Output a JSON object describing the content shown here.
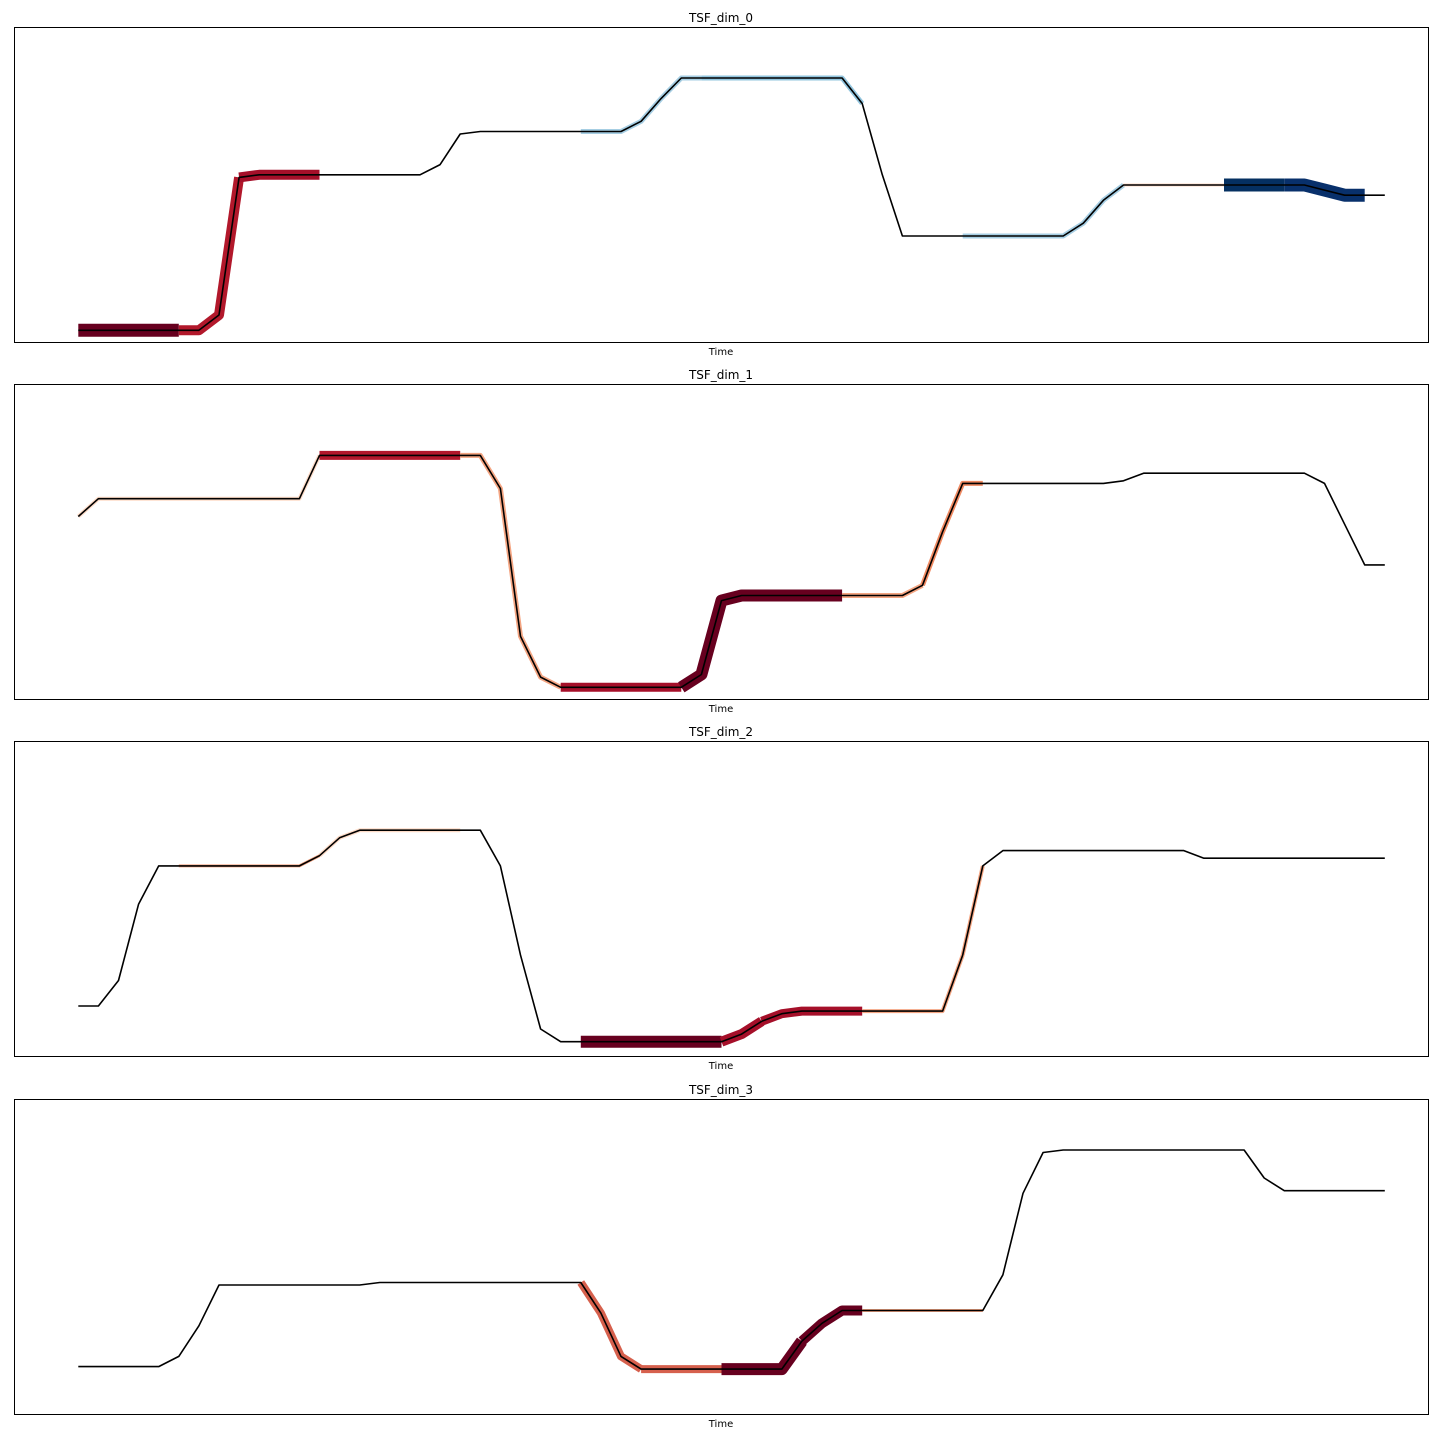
{
  "chart_data": [
    {
      "type": "line",
      "title": "TSF_dim_0",
      "xlabel": "Time",
      "ylabel": "",
      "xlim": [
        -3.2,
        67.2
      ],
      "ylim": [
        -0.25,
        5.95
      ],
      "grid": false,
      "ticks_visible": false,
      "series": [
        {
          "values": [
            0.0,
            0.0,
            0.0,
            0.0,
            0.0,
            0.0,
            0.0,
            0.3,
            3.0,
            3.05,
            3.05,
            3.05,
            3.05,
            3.05,
            3.05,
            3.05,
            3.05,
            3.05,
            3.25,
            3.85,
            3.9,
            3.9,
            3.9,
            3.9,
            3.9,
            3.9,
            3.9,
            3.9,
            4.1,
            4.55,
            4.95,
            4.95,
            4.95,
            4.95,
            4.95,
            4.95,
            4.95,
            4.95,
            4.95,
            4.45,
            3.05,
            1.85,
            1.85,
            1.85,
            1.85,
            1.85,
            1.85,
            1.85,
            1.85,
            1.85,
            2.1,
            2.55,
            2.85,
            2.85,
            2.85,
            2.85,
            2.85,
            2.85,
            2.85,
            2.85,
            2.85,
            2.85,
            2.75,
            2.65,
            2.65,
            2.65
          ]
        }
      ],
      "highlights": [
        {
          "start": 0,
          "end": 5,
          "color": "#67001f",
          "width": 13
        },
        {
          "start": 5,
          "end": 8,
          "color": "#b2182b",
          "width": 10
        },
        {
          "start": 8,
          "end": 12,
          "color": "#a50f29",
          "width": 10
        },
        {
          "start": 25,
          "end": 31,
          "color": "#a6cee3",
          "width": 5
        },
        {
          "start": 31,
          "end": 39,
          "color": "#92c5de",
          "width": 5
        },
        {
          "start": 44,
          "end": 52,
          "color": "#a6cee3",
          "width": 5
        },
        {
          "start": 52,
          "end": 57,
          "color": "#fddbc7",
          "width": 3
        },
        {
          "start": 57,
          "end": 60,
          "color": "#053061",
          "width": 13
        },
        {
          "start": 60,
          "end": 64,
          "color": "#08306b",
          "width": 13
        }
      ]
    },
    {
      "type": "line",
      "title": "TSF_dim_1",
      "xlabel": "Time",
      "ylabel": "",
      "xlim": [
        -3.2,
        67.2
      ],
      "ylim": [
        -0.25,
        5.95
      ],
      "grid": false,
      "ticks_visible": false,
      "series": [
        {
          "values": [
            3.35,
            3.7,
            3.7,
            3.7,
            3.7,
            3.7,
            3.7,
            3.7,
            3.7,
            3.7,
            3.7,
            3.7,
            4.55,
            4.55,
            4.55,
            4.55,
            4.55,
            4.55,
            4.55,
            4.55,
            4.55,
            3.9,
            1.0,
            0.2,
            0.0,
            0.0,
            0.0,
            0.0,
            0.0,
            0.0,
            0.0,
            0.25,
            1.7,
            1.8,
            1.8,
            1.8,
            1.8,
            1.8,
            1.8,
            1.8,
            1.8,
            1.8,
            2.0,
            3.05,
            4.0,
            4.0,
            4.0,
            4.0,
            4.0,
            4.0,
            4.0,
            4.0,
            4.05,
            4.2,
            4.2,
            4.2,
            4.2,
            4.2,
            4.2,
            4.2,
            4.2,
            4.2,
            4.0,
            3.2,
            2.4,
            2.4
          ]
        }
      ],
      "highlights": [
        {
          "start": 0,
          "end": 12,
          "color": "#fddbc7",
          "width": 4
        },
        {
          "start": 12,
          "end": 19,
          "color": "#b2182b",
          "width": 9
        },
        {
          "start": 19,
          "end": 24,
          "color": "#f4a582",
          "width": 5
        },
        {
          "start": 24,
          "end": 30,
          "color": "#a50f29",
          "width": 9
        },
        {
          "start": 30,
          "end": 38,
          "color": "#67001f",
          "width": 12
        },
        {
          "start": 38,
          "end": 42,
          "color": "#f4a582",
          "width": 5
        },
        {
          "start": 42,
          "end": 45,
          "color": "#ef8a62",
          "width": 5
        }
      ]
    },
    {
      "type": "line",
      "title": "TSF_dim_2",
      "xlabel": "Time",
      "ylabel": "",
      "xlim": [
        -3.2,
        67.2
      ],
      "ylim": [
        -0.25,
        5.95
      ],
      "grid": false,
      "ticks_visible": false,
      "series": [
        {
          "values": [
            0.75,
            0.75,
            1.25,
            2.75,
            3.5,
            3.5,
            3.5,
            3.5,
            3.5,
            3.5,
            3.5,
            3.5,
            3.7,
            4.05,
            4.2,
            4.2,
            4.2,
            4.2,
            4.2,
            4.2,
            4.2,
            3.5,
            1.75,
            0.3,
            0.05,
            0.05,
            0.05,
            0.05,
            0.05,
            0.05,
            0.05,
            0.05,
            0.05,
            0.2,
            0.45,
            0.6,
            0.65,
            0.65,
            0.65,
            0.65,
            0.65,
            0.65,
            0.65,
            0.65,
            1.75,
            3.5,
            3.8,
            3.8,
            3.8,
            3.8,
            3.8,
            3.8,
            3.8,
            3.8,
            3.8,
            3.8,
            3.65,
            3.65,
            3.65,
            3.65,
            3.65,
            3.65,
            3.65,
            3.65,
            3.65,
            3.65
          ]
        }
      ],
      "highlights": [
        {
          "start": 5,
          "end": 12,
          "color": "#f4a582",
          "width": 3
        },
        {
          "start": 12,
          "end": 19,
          "color": "#fddbc7",
          "width": 4
        },
        {
          "start": 25,
          "end": 32,
          "color": "#67001f",
          "width": 12
        },
        {
          "start": 32,
          "end": 34,
          "color": "#a50f29",
          "width": 10
        },
        {
          "start": 34,
          "end": 39,
          "color": "#a50f29",
          "width": 9
        },
        {
          "start": 39,
          "end": 44,
          "color": "#f4a582",
          "width": 4
        },
        {
          "start": 44,
          "end": 45,
          "color": "#f4a582",
          "width": 4
        }
      ]
    },
    {
      "type": "line",
      "title": "TSF_dim_3",
      "xlabel": "Time",
      "ylabel": "",
      "xlim": [
        -3.2,
        67.2
      ],
      "ylim": [
        -0.25,
        5.95
      ],
      "grid": false,
      "ticks_visible": false,
      "series": [
        {
          "values": [
            0.7,
            0.7,
            0.7,
            0.7,
            0.7,
            0.9,
            1.5,
            2.3,
            2.3,
            2.3,
            2.3,
            2.3,
            2.3,
            2.3,
            2.3,
            2.35,
            2.35,
            2.35,
            2.35,
            2.35,
            2.35,
            2.35,
            2.35,
            2.35,
            2.35,
            2.35,
            1.75,
            0.9,
            0.65,
            0.65,
            0.65,
            0.65,
            0.65,
            0.65,
            0.65,
            0.65,
            1.2,
            1.55,
            1.8,
            1.8,
            1.8,
            1.8,
            1.8,
            1.8,
            1.8,
            1.8,
            2.5,
            4.1,
            4.9,
            4.95,
            4.95,
            4.95,
            4.95,
            4.95,
            4.95,
            4.95,
            4.95,
            4.95,
            4.95,
            4.4,
            4.15,
            4.15,
            4.15,
            4.15,
            4.15,
            4.15
          ]
        }
      ],
      "highlights": [
        {
          "start": 25,
          "end": 28,
          "color": "#d6604d",
          "width": 8
        },
        {
          "start": 28,
          "end": 32,
          "color": "#d6604d",
          "width": 8
        },
        {
          "start": 32,
          "end": 36,
          "color": "#67001f",
          "width": 12
        },
        {
          "start": 36,
          "end": 39,
          "color": "#67001f",
          "width": 10
        },
        {
          "start": 39,
          "end": 45,
          "color": "#f4a582",
          "width": 3
        }
      ]
    }
  ]
}
